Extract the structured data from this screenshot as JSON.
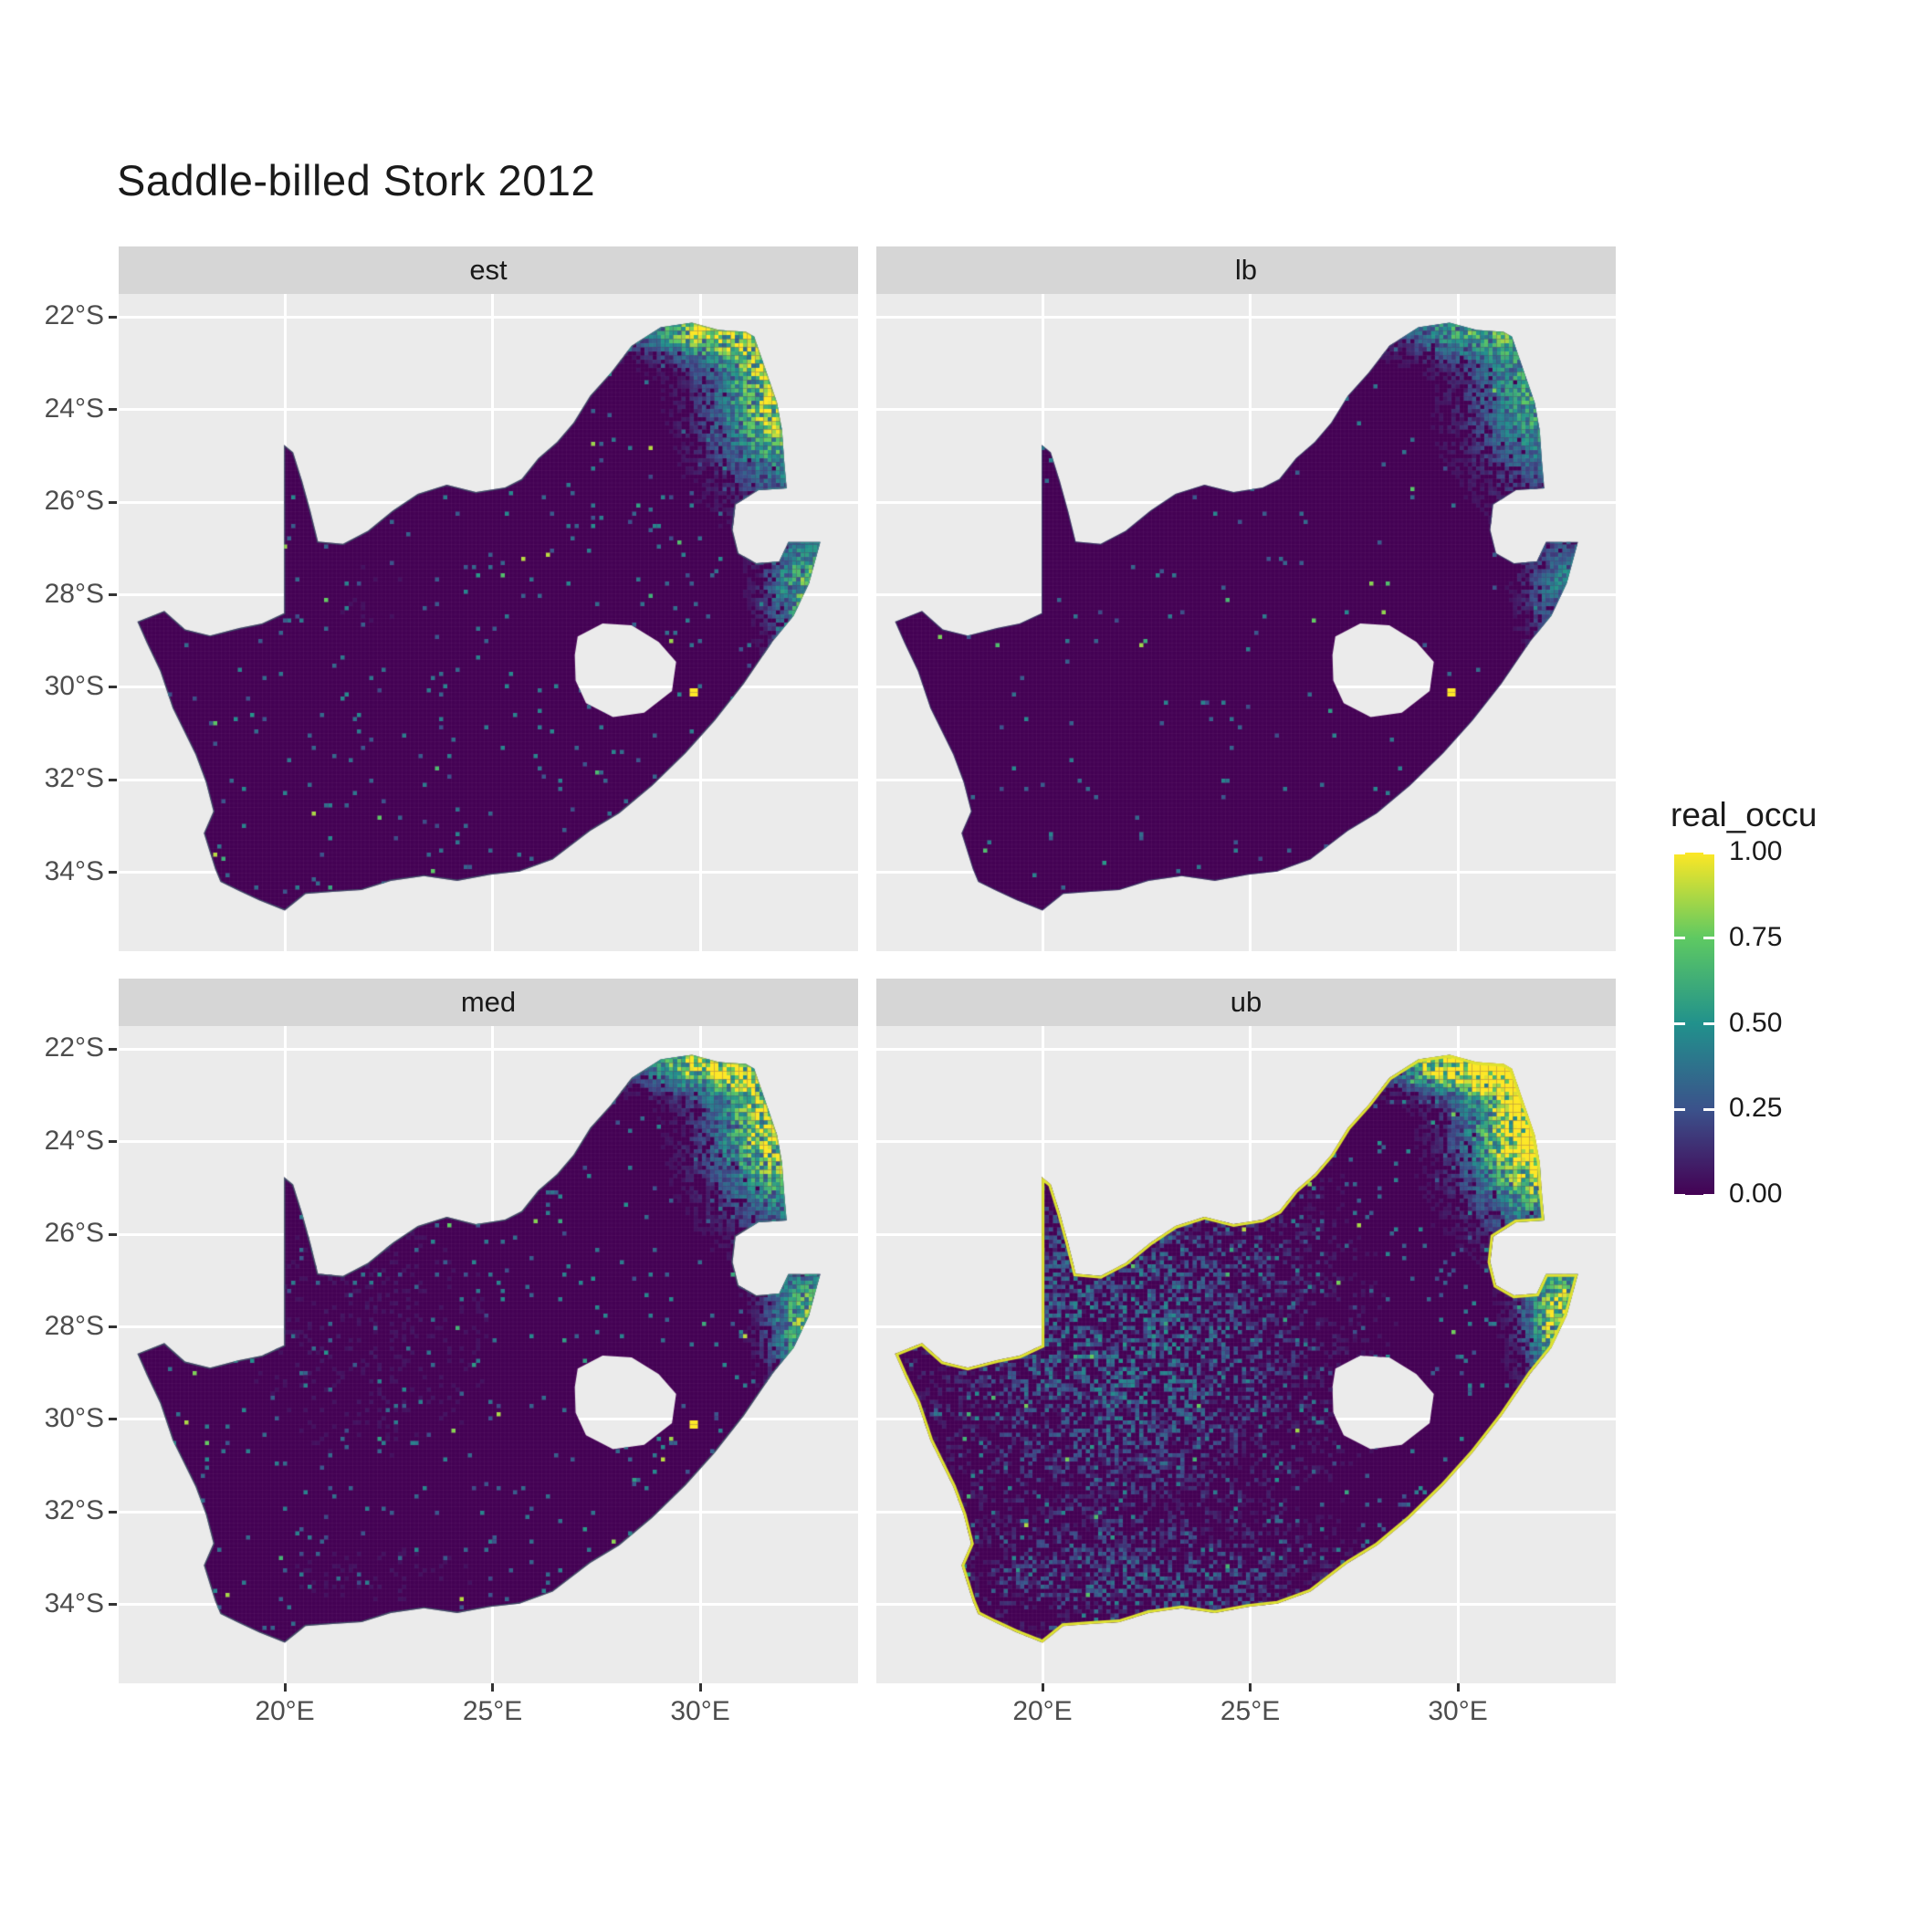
{
  "chart_data": {
    "type": "heatmap",
    "subtype": "faceted-raster-map",
    "region": "South Africa",
    "title": "Saddle-billed Stork 2012",
    "facets": [
      {
        "label": "est",
        "ne": 0.95,
        "kzn": 0.75,
        "speckle": 0.6,
        "wash": 0.05,
        "fringe": 0.18,
        "dot": true,
        "seed": 11
      },
      {
        "label": "lb",
        "ne": 0.62,
        "kzn": 0.45,
        "speckle": 0.25,
        "wash": 0.0,
        "fringe": 0.06,
        "dot": true,
        "seed": 23
      },
      {
        "label": "med",
        "ne": 1.0,
        "kzn": 0.8,
        "speckle": 0.7,
        "wash": 0.08,
        "fringe": 0.22,
        "dot": true,
        "seed": 37
      },
      {
        "label": "ub",
        "ne": 1.35,
        "kzn": 1.05,
        "speckle": 1.15,
        "wash": 0.55,
        "fringe": 1.0,
        "dot": false,
        "seed": 51
      }
    ],
    "legend": {
      "title": "real_occu",
      "colormap": "viridis",
      "ticks": [
        {
          "label": "1.00",
          "value": 1.0
        },
        {
          "label": "0.75",
          "value": 0.75
        },
        {
          "label": "0.50",
          "value": 0.5
        },
        {
          "label": "0.25",
          "value": 0.25
        },
        {
          "label": "0.00",
          "value": 0.0
        }
      ],
      "stops": [
        {
          "v": 0.0,
          "color": "#440154"
        },
        {
          "v": 0.25,
          "color": "#3B528B"
        },
        {
          "v": 0.5,
          "color": "#21918C"
        },
        {
          "v": 0.75,
          "color": "#5EC962"
        },
        {
          "v": 1.0,
          "color": "#FDE725"
        }
      ]
    },
    "x_axis": {
      "range": [
        16.0,
        33.8
      ],
      "ticks": [
        {
          "label": "20°E",
          "value": 20
        },
        {
          "label": "25°E",
          "value": 25
        },
        {
          "label": "30°E",
          "value": 30
        }
      ]
    },
    "y_axis": {
      "range": [
        -35.7,
        -21.5
      ],
      "ticks": [
        {
          "label": "22°S",
          "value": -22
        },
        {
          "label": "24°S",
          "value": -24
        },
        {
          "label": "26°S",
          "value": -26
        },
        {
          "label": "28°S",
          "value": -28
        },
        {
          "label": "30°S",
          "value": -30
        },
        {
          "label": "32°S",
          "value": -32
        },
        {
          "label": "34°S",
          "value": -34
        }
      ]
    },
    "panel_bg": "#EBEBEB",
    "strip_bg": "#D6D6D6",
    "grid_color": "#FFFFFF",
    "base_value_color": "#440154"
  }
}
